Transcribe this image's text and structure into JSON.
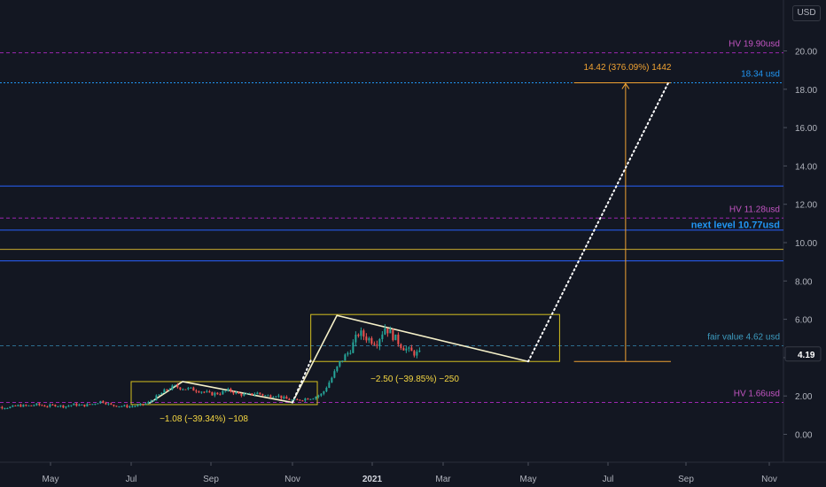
{
  "currency_badge": "USD",
  "chart_data": {
    "type": "candlestick",
    "price_scale": {
      "ticks": [
        "20.00",
        "18.00",
        "16.00",
        "14.00",
        "12.00",
        "10.00",
        "8.00",
        "6.00",
        "4.00",
        "2.00",
        "0.00"
      ],
      "ylim": [
        -2.5,
        22.0
      ],
      "last_price": "4.19",
      "last_price_color": "#ffffff"
    },
    "time_axis": {
      "ticks": [
        "May",
        "Jul",
        "Sep",
        "Nov",
        "2021",
        "Mar",
        "May",
        "Jul",
        "Sep",
        "Nov"
      ],
      "tick_dates": [
        "2020-05-01",
        "2020-07-01",
        "2020-09-01",
        "2020-11-01",
        "2021-01-01",
        "2021-03-01",
        "2021-05-01",
        "2021-07-01",
        "2021-09-01",
        "2021-11-01"
      ]
    },
    "horizontal_lines": [
      {
        "label": "HV 19.90usd",
        "price": 19.9,
        "style": "dashed",
        "color": "#9c27b0",
        "label_color": "#c154c1"
      },
      {
        "label": "18.34 usd",
        "price": 18.34,
        "style": "dotted",
        "color": "#2196f3",
        "label_color": "#2196f3"
      },
      {
        "label": "",
        "price": 12.95,
        "style": "solid",
        "color": "#2962ff"
      },
      {
        "label": "HV 11.28usd",
        "price": 11.28,
        "style": "dashed",
        "color": "#9c27b0",
        "label_color": "#c154c1"
      },
      {
        "label": "next level 10.77usd",
        "price": 10.77,
        "style": "text",
        "color": "#2962ff",
        "label_color": "#2196f3"
      },
      {
        "label": "",
        "price": 10.65,
        "style": "solid",
        "color": "#2962ff"
      },
      {
        "label": "",
        "price": 9.65,
        "style": "solid",
        "color": "#c8a82e"
      },
      {
        "label": "",
        "price": 9.05,
        "style": "solid",
        "color": "#2962ff"
      },
      {
        "label": "fair value 4.62 usd",
        "price": 4.62,
        "style": "dashed",
        "color": "#2c6e8f",
        "label_color": "#3d9cc0"
      },
      {
        "label": "HV 1.66usd",
        "price": 1.66,
        "style": "dashed",
        "color": "#9c27b0",
        "label_color": "#c154c1"
      }
    ],
    "measurements": [
      {
        "label": "−1.08 (−39.34%) −108",
        "color": "#f5d742"
      },
      {
        "label": "−2.50 (−39.85%) −250",
        "color": "#f5d742"
      },
      {
        "label": "14.42 (376.09%) 1442",
        "color": "#f0a232"
      }
    ],
    "rectangles": [
      {
        "from": "2020-07-01",
        "to": "2020-11-20",
        "top": 2.75,
        "bottom": 1.55,
        "color": "#d4c020"
      },
      {
        "from": "2020-11-15",
        "to": "2021-05-25",
        "top": 6.25,
        "bottom": 3.8,
        "color": "#d4c020"
      }
    ],
    "target_projection": {
      "from": "2021-06-05",
      "to": "2021-08-20",
      "base_price": 3.8,
      "target_price": 18.34,
      "arrow_date": "2021-07-15",
      "color": "#f0a232"
    },
    "trend_lines": [
      {
        "points": [
          [
            "2020-07-15",
            1.62
          ],
          [
            "2020-08-10",
            2.75
          ],
          [
            "2020-11-01",
            1.66
          ]
        ],
        "style": "solid",
        "color": "#f5f0c8"
      },
      {
        "points": [
          [
            "2020-11-01",
            1.66
          ],
          [
            "2020-12-05",
            6.2
          ],
          [
            "2021-05-01",
            3.8
          ]
        ],
        "style": "solid",
        "color": "#f5f0c8"
      },
      {
        "points": [
          [
            "2020-11-01",
            1.66
          ],
          [
            "2020-11-15",
            3.85
          ]
        ],
        "style": "dotted",
        "color": "#ffffff"
      },
      {
        "points": [
          [
            "2021-05-01",
            3.8
          ],
          [
            "2021-08-18",
            18.34
          ]
        ],
        "style": "dotted",
        "color": "#ffffff"
      }
    ],
    "candles": {
      "up_color": "#26a69a",
      "down_color": "#ef5350",
      "series": [
        [
          "2020-03-16",
          1.35
        ],
        [
          "2020-03-23",
          1.42
        ],
        [
          "2020-03-30",
          1.4
        ],
        [
          "2020-04-06",
          1.5
        ],
        [
          "2020-04-13",
          1.48
        ],
        [
          "2020-04-20",
          1.55
        ],
        [
          "2020-04-27",
          1.47
        ],
        [
          "2020-05-04",
          1.52
        ],
        [
          "2020-05-11",
          1.45
        ],
        [
          "2020-05-18",
          1.55
        ],
        [
          "2020-05-25",
          1.5
        ],
        [
          "2020-06-01",
          1.58
        ],
        [
          "2020-06-08",
          1.74
        ],
        [
          "2020-06-15",
          1.52
        ],
        [
          "2020-06-22",
          1.48
        ],
        [
          "2020-06-29",
          1.45
        ],
        [
          "2020-07-06",
          1.5
        ],
        [
          "2020-07-13",
          1.62
        ],
        [
          "2020-07-20",
          1.95
        ],
        [
          "2020-07-27",
          2.3
        ],
        [
          "2020-08-03",
          2.5
        ],
        [
          "2020-08-10",
          2.4
        ],
        [
          "2020-08-17",
          2.35
        ],
        [
          "2020-08-24",
          2.25
        ],
        [
          "2020-08-31",
          2.1
        ],
        [
          "2020-09-07",
          2.15
        ],
        [
          "2020-09-14",
          2.3
        ],
        [
          "2020-09-21",
          2.1
        ],
        [
          "2020-09-28",
          2.05
        ],
        [
          "2020-10-05",
          2.15
        ],
        [
          "2020-10-12",
          2.0
        ],
        [
          "2020-10-19",
          2.05
        ],
        [
          "2020-10-26",
          1.85
        ],
        [
          "2020-11-02",
          1.75
        ],
        [
          "2020-11-09",
          1.85
        ],
        [
          "2020-11-16",
          1.92
        ],
        [
          "2020-11-23",
          2.1
        ],
        [
          "2020-11-30",
          2.9
        ],
        [
          "2020-12-07",
          3.8
        ],
        [
          "2020-12-14",
          4.35
        ],
        [
          "2020-12-21",
          5.3
        ],
        [
          "2020-12-28",
          5.0
        ],
        [
          "2021-01-04",
          4.8
        ],
        [
          "2021-01-11",
          5.6
        ],
        [
          "2021-01-18",
          5.1
        ],
        [
          "2021-01-25",
          4.6
        ],
        [
          "2021-02-01",
          4.3
        ],
        [
          "2021-02-08",
          4.19
        ]
      ]
    }
  }
}
